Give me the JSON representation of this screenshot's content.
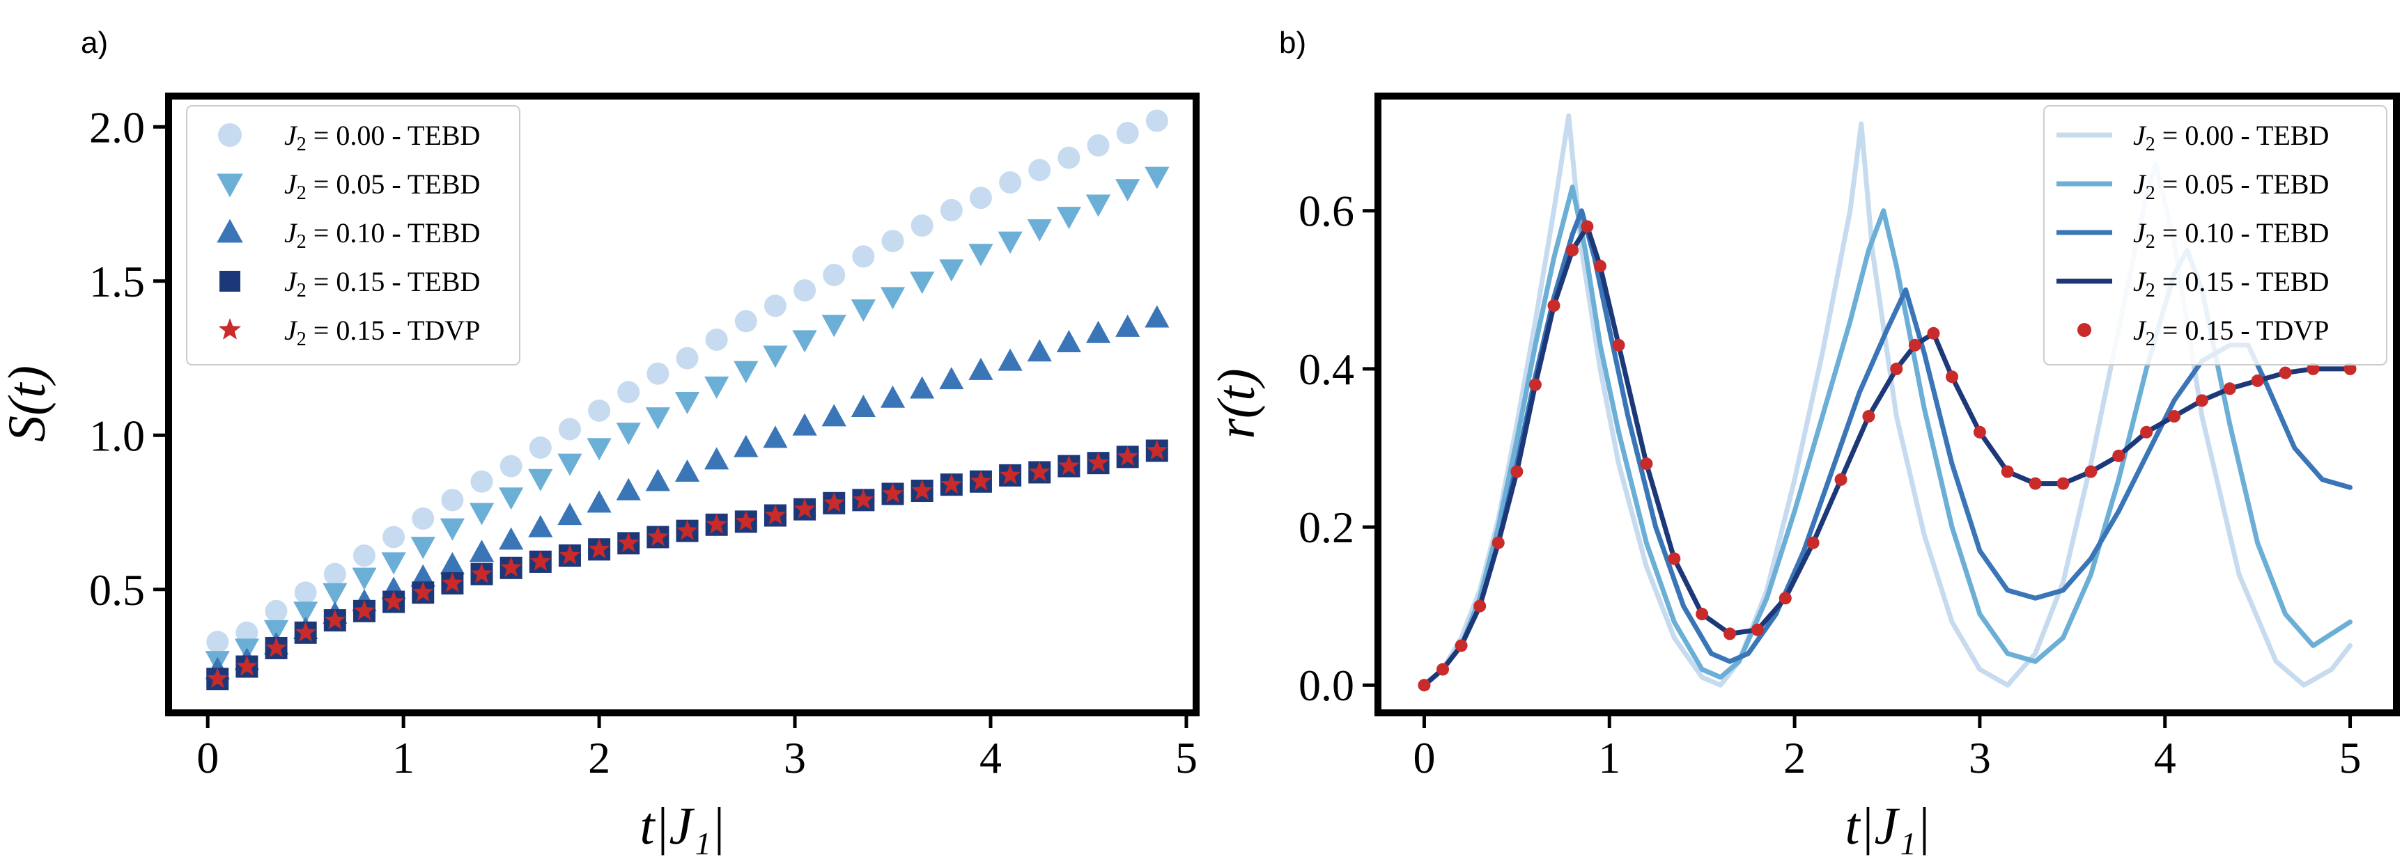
{
  "chart_data": [
    {
      "type": "scatter",
      "panel_label": "a)",
      "xlabel": "t|J₁|",
      "ylabel": "S(t)",
      "xlim": [
        -0.2,
        5.05
      ],
      "ylim": [
        0.1,
        2.1
      ],
      "xticks": [
        0,
        1,
        2,
        3,
        4,
        5
      ],
      "xtick_labels": [
        "0",
        "1",
        "2",
        "3",
        "4",
        "5"
      ],
      "yticks": [
        0.5,
        1.0,
        1.5,
        2.0
      ],
      "ytick_labels": [
        "0.5",
        "1.0",
        "1.5",
        "2.0"
      ],
      "legend_position": "top-left",
      "x": [
        0.05,
        0.2,
        0.35,
        0.5,
        0.65,
        0.8,
        0.95,
        1.1,
        1.25,
        1.4,
        1.55,
        1.7,
        1.85,
        2.0,
        2.15,
        2.3,
        2.45,
        2.6,
        2.75,
        2.9,
        3.05,
        3.2,
        3.35,
        3.5,
        3.65,
        3.8,
        3.95,
        4.1,
        4.25,
        4.4,
        4.55,
        4.7,
        4.85
      ],
      "series": [
        {
          "name": "J₂ = 0.00 - TEBD",
          "marker": "circle",
          "color": "#c6dbef",
          "values": [
            0.33,
            0.36,
            0.43,
            0.49,
            0.55,
            0.61,
            0.67,
            0.73,
            0.79,
            0.85,
            0.9,
            0.96,
            1.02,
            1.08,
            1.14,
            1.2,
            1.25,
            1.31,
            1.37,
            1.42,
            1.47,
            1.52,
            1.58,
            1.63,
            1.68,
            1.73,
            1.77,
            1.82,
            1.86,
            1.9,
            1.94,
            1.98,
            2.02
          ]
        },
        {
          "name": "J₂ = 0.05 - TEBD",
          "marker": "triangle-down",
          "color": "#6baed6",
          "values": [
            0.27,
            0.31,
            0.37,
            0.43,
            0.49,
            0.54,
            0.59,
            0.64,
            0.7,
            0.75,
            0.8,
            0.86,
            0.91,
            0.96,
            1.01,
            1.06,
            1.11,
            1.16,
            1.21,
            1.26,
            1.31,
            1.36,
            1.41,
            1.45,
            1.5,
            1.54,
            1.59,
            1.63,
            1.67,
            1.71,
            1.75,
            1.8,
            1.84
          ]
        },
        {
          "name": "J₂ = 0.10 - TEBD",
          "marker": "triangle-up",
          "color": "#3a75b7",
          "values": [
            0.24,
            0.27,
            0.32,
            0.37,
            0.42,
            0.46,
            0.5,
            0.54,
            0.58,
            0.62,
            0.66,
            0.7,
            0.74,
            0.78,
            0.82,
            0.85,
            0.88,
            0.92,
            0.96,
            0.99,
            1.03,
            1.06,
            1.09,
            1.12,
            1.15,
            1.18,
            1.21,
            1.24,
            1.27,
            1.3,
            1.33,
            1.35,
            1.38
          ]
        },
        {
          "name": "J₂ = 0.15 - TEBD",
          "marker": "square",
          "color": "#1c3879",
          "values": [
            0.21,
            0.25,
            0.31,
            0.36,
            0.4,
            0.43,
            0.46,
            0.49,
            0.52,
            0.55,
            0.57,
            0.59,
            0.61,
            0.63,
            0.65,
            0.67,
            0.69,
            0.71,
            0.72,
            0.74,
            0.76,
            0.78,
            0.79,
            0.81,
            0.82,
            0.84,
            0.85,
            0.87,
            0.88,
            0.9,
            0.91,
            0.93,
            0.95
          ]
        },
        {
          "name": "J₂ = 0.15 - TDVP",
          "marker": "star",
          "color": "#c92a2a",
          "values": [
            0.21,
            0.25,
            0.31,
            0.36,
            0.4,
            0.43,
            0.46,
            0.49,
            0.52,
            0.55,
            0.57,
            0.59,
            0.61,
            0.63,
            0.65,
            0.67,
            0.69,
            0.71,
            0.72,
            0.74,
            0.76,
            0.78,
            0.79,
            0.81,
            0.82,
            0.84,
            0.85,
            0.87,
            0.88,
            0.9,
            0.91,
            0.93,
            0.95
          ]
        }
      ]
    },
    {
      "type": "line",
      "panel_label": "b)",
      "xlabel": "t|J₁|",
      "ylabel": "r(t)",
      "xlim": [
        -0.25,
        5.25
      ],
      "ylim": [
        -0.035,
        0.745
      ],
      "xticks": [
        0,
        1,
        2,
        3,
        4,
        5
      ],
      "xtick_labels": [
        "0",
        "1",
        "2",
        "3",
        "4",
        "5"
      ],
      "yticks": [
        0.0,
        0.2,
        0.4,
        0.6
      ],
      "ytick_labels": [
        "0.0",
        "0.2",
        "0.4",
        "0.6"
      ],
      "legend_position": "top-right",
      "series": [
        {
          "name": "J₂ = 0.00 - TEBD",
          "style": "line",
          "color": "#c6dbef",
          "x": [
            0,
            0.1,
            0.2,
            0.3,
            0.4,
            0.5,
            0.6,
            0.7,
            0.78,
            0.85,
            0.95,
            1.05,
            1.2,
            1.35,
            1.5,
            1.6,
            1.7,
            1.85,
            2.0,
            2.15,
            2.3,
            2.36,
            2.42,
            2.55,
            2.7,
            2.85,
            3.0,
            3.15,
            3.3,
            3.45,
            3.6,
            3.75,
            3.9,
            3.95,
            4.05,
            4.2,
            4.4,
            4.6,
            4.75,
            4.9,
            5.0
          ],
          "y": [
            0.0,
            0.02,
            0.06,
            0.12,
            0.21,
            0.33,
            0.46,
            0.6,
            0.72,
            0.55,
            0.4,
            0.28,
            0.15,
            0.06,
            0.01,
            0.0,
            0.03,
            0.12,
            0.26,
            0.42,
            0.6,
            0.71,
            0.55,
            0.34,
            0.19,
            0.08,
            0.02,
            0.0,
            0.04,
            0.13,
            0.28,
            0.45,
            0.62,
            0.66,
            0.56,
            0.34,
            0.14,
            0.03,
            0.0,
            0.02,
            0.05
          ]
        },
        {
          "name": "J₂ = 0.05 - TEBD",
          "style": "line",
          "color": "#6baed6",
          "x": [
            0,
            0.1,
            0.2,
            0.3,
            0.4,
            0.5,
            0.6,
            0.7,
            0.8,
            0.87,
            0.95,
            1.05,
            1.2,
            1.35,
            1.5,
            1.6,
            1.7,
            1.85,
            2.0,
            2.15,
            2.3,
            2.4,
            2.48,
            2.55,
            2.7,
            2.85,
            3.0,
            3.15,
            3.3,
            3.45,
            3.6,
            3.75,
            3.9,
            4.05,
            4.12,
            4.2,
            4.35,
            4.5,
            4.65,
            4.8,
            5.0
          ],
          "y": [
            0.0,
            0.02,
            0.05,
            0.11,
            0.2,
            0.31,
            0.43,
            0.54,
            0.63,
            0.55,
            0.43,
            0.32,
            0.18,
            0.08,
            0.02,
            0.01,
            0.03,
            0.11,
            0.22,
            0.34,
            0.46,
            0.55,
            0.6,
            0.53,
            0.35,
            0.2,
            0.09,
            0.04,
            0.03,
            0.06,
            0.14,
            0.26,
            0.4,
            0.52,
            0.55,
            0.5,
            0.33,
            0.18,
            0.09,
            0.05,
            0.08
          ]
        },
        {
          "name": "J₂ = 0.10 - TEBD",
          "style": "line",
          "color": "#3a75b7",
          "x": [
            0,
            0.1,
            0.2,
            0.3,
            0.4,
            0.5,
            0.6,
            0.7,
            0.8,
            0.85,
            0.92,
            1.0,
            1.1,
            1.25,
            1.4,
            1.55,
            1.65,
            1.75,
            1.9,
            2.05,
            2.2,
            2.35,
            2.5,
            2.6,
            2.7,
            2.85,
            3.0,
            3.15,
            3.3,
            3.45,
            3.6,
            3.75,
            3.9,
            4.05,
            4.2,
            4.35,
            4.45,
            4.55,
            4.7,
            4.85,
            5.0
          ],
          "y": [
            0.0,
            0.02,
            0.05,
            0.1,
            0.18,
            0.28,
            0.39,
            0.49,
            0.57,
            0.6,
            0.54,
            0.45,
            0.34,
            0.2,
            0.1,
            0.04,
            0.03,
            0.04,
            0.09,
            0.17,
            0.27,
            0.37,
            0.45,
            0.5,
            0.42,
            0.28,
            0.17,
            0.12,
            0.11,
            0.12,
            0.16,
            0.22,
            0.29,
            0.36,
            0.41,
            0.43,
            0.43,
            0.38,
            0.3,
            0.26,
            0.25
          ]
        },
        {
          "name": "J₂ = 0.15 - TEBD",
          "style": "line",
          "color": "#1c3879",
          "x": [
            0,
            0.1,
            0.2,
            0.3,
            0.4,
            0.5,
            0.6,
            0.7,
            0.8,
            0.88,
            0.95,
            1.05,
            1.2,
            1.35,
            1.5,
            1.65,
            1.8,
            1.95,
            2.1,
            2.25,
            2.4,
            2.55,
            2.65,
            2.75,
            2.85,
            3.0,
            3.15,
            3.3,
            3.45,
            3.6,
            3.75,
            3.9,
            4.05,
            4.2,
            4.35,
            4.5,
            4.65,
            4.8,
            5.0
          ],
          "y": [
            0.0,
            0.02,
            0.05,
            0.1,
            0.18,
            0.27,
            0.38,
            0.48,
            0.55,
            0.58,
            0.53,
            0.43,
            0.28,
            0.16,
            0.09,
            0.065,
            0.07,
            0.11,
            0.18,
            0.26,
            0.34,
            0.4,
            0.43,
            0.445,
            0.39,
            0.32,
            0.27,
            0.255,
            0.255,
            0.27,
            0.29,
            0.32,
            0.34,
            0.36,
            0.375,
            0.385,
            0.395,
            0.4,
            0.4
          ]
        },
        {
          "name": "J₂ = 0.15 - TDVP",
          "style": "dots",
          "color": "#c92a2a",
          "x": [
            0,
            0.1,
            0.2,
            0.3,
            0.4,
            0.5,
            0.6,
            0.7,
            0.8,
            0.88,
            0.95,
            1.05,
            1.2,
            1.35,
            1.5,
            1.65,
            1.8,
            1.95,
            2.1,
            2.25,
            2.4,
            2.55,
            2.65,
            2.75,
            2.85,
            3.0,
            3.15,
            3.3,
            3.45,
            3.6,
            3.75,
            3.9,
            4.05,
            4.2,
            4.35,
            4.5,
            4.65,
            4.8,
            5.0
          ],
          "y": [
            0.0,
            0.02,
            0.05,
            0.1,
            0.18,
            0.27,
            0.38,
            0.48,
            0.55,
            0.58,
            0.53,
            0.43,
            0.28,
            0.16,
            0.09,
            0.065,
            0.07,
            0.11,
            0.18,
            0.26,
            0.34,
            0.4,
            0.43,
            0.445,
            0.39,
            0.32,
            0.27,
            0.255,
            0.255,
            0.27,
            0.29,
            0.32,
            0.34,
            0.36,
            0.375,
            0.385,
            0.395,
            0.4,
            0.4
          ]
        }
      ]
    }
  ]
}
